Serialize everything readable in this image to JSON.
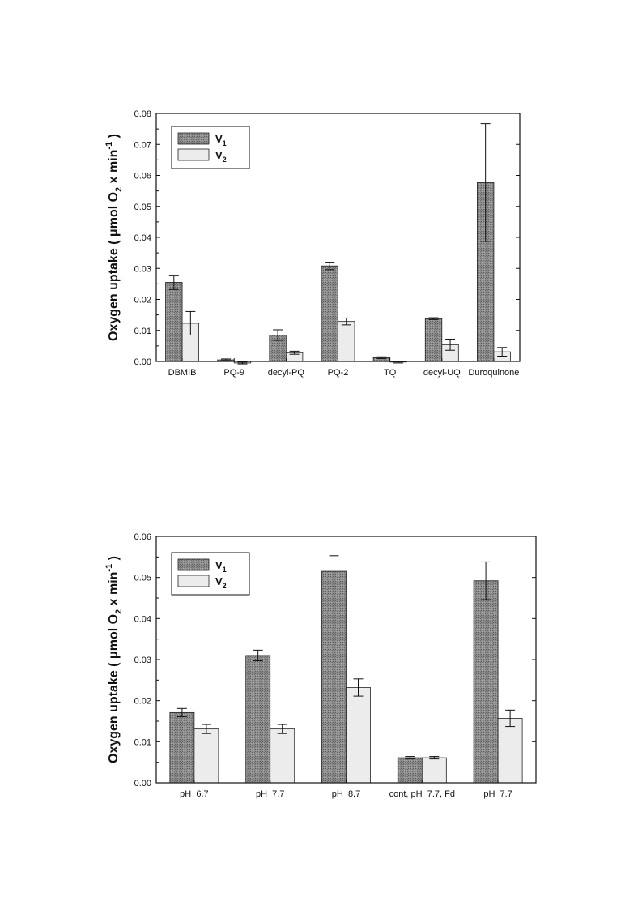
{
  "chart_data": [
    {
      "type": "bar",
      "categories": [
        "DBMIB",
        "PQ-9",
        "decyl-PQ",
        "PQ-2",
        "TQ",
        "decyl-UQ",
        "Duroquinone"
      ],
      "series": [
        {
          "name": "V",
          "subscript": "1",
          "values": [
            0.0255,
            0.0005,
            0.0085,
            0.0308,
            0.0012,
            0.0138,
            0.0577
          ],
          "errors": [
            0.0023,
            0.0003,
            0.0017,
            0.0012,
            0.0003,
            0.0003,
            0.019
          ]
        },
        {
          "name": "V",
          "subscript": "2",
          "values": [
            0.0123,
            -0.0005,
            0.0028,
            0.0129,
            -0.0002,
            0.0054,
            0.0031
          ],
          "errors": [
            0.0038,
            0.0003,
            0.0005,
            0.0011,
            0.0003,
            0.0018,
            0.0014
          ]
        }
      ],
      "ylabel": "Oxygen uptake ( μmol O₂ x min⁻¹ )",
      "ylabel_parts": {
        "pre": "Oxygen uptake ( μmol O",
        "sub": "2",
        "mid": " x min",
        "sup": "-1",
        "post": " )"
      },
      "ylim": [
        0,
        0.08
      ],
      "yticks": [
        "0.00",
        "0.01",
        "0.02",
        "0.03",
        "0.04",
        "0.05",
        "0.06",
        "0.07",
        "0.08"
      ],
      "legend_position": "top-left",
      "colors": {
        "v1": "#8a8a8a",
        "v2": "#ececec"
      }
    },
    {
      "type": "bar",
      "categories": [
        "pH  6.7",
        "pH  7.7",
        "pH  8.7",
        "cont, pH  7.7, Fd",
        "pH  7.7"
      ],
      "series": [
        {
          "name": "V",
          "subscript": "1",
          "values": [
            0.0171,
            0.031,
            0.0515,
            0.0061,
            0.0492
          ],
          "errors": [
            0.001,
            0.0013,
            0.0038,
            0.0003,
            0.0046
          ]
        },
        {
          "name": "V",
          "subscript": "2",
          "values": [
            0.0131,
            0.0131,
            0.0232,
            0.0061,
            0.0157
          ],
          "errors": [
            0.0011,
            0.0011,
            0.0021,
            0.0003,
            0.002
          ]
        }
      ],
      "ylabel": "Oxygen uptake ( μmol O₂ x min⁻¹ )",
      "ylabel_parts": {
        "pre": "Oxygen uptake ( μmol O",
        "sub": "2",
        "mid": " x min",
        "sup": "-1",
        "post": " )"
      },
      "ylim": [
        0,
        0.06
      ],
      "yticks": [
        "0.00",
        "0.01",
        "0.02",
        "0.03",
        "0.04",
        "0.05",
        "0.06"
      ],
      "legend_position": "top-left",
      "colors": {
        "v1": "#8a8a8a",
        "v2": "#ececec"
      }
    }
  ]
}
